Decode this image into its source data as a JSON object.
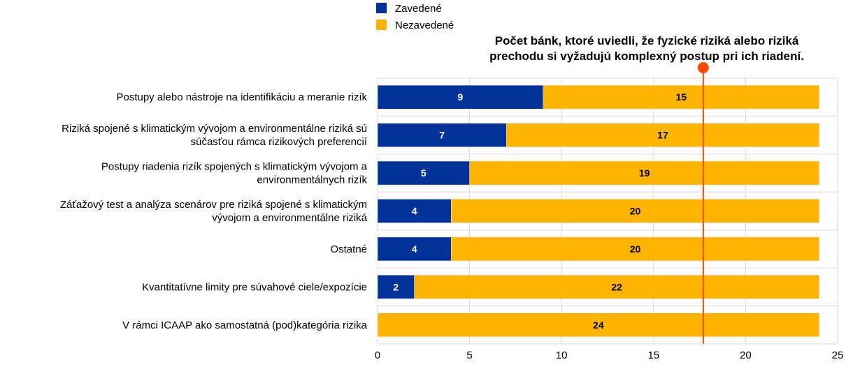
{
  "chart_data": {
    "type": "bar",
    "orientation": "horizontal",
    "stacked": true,
    "title": "",
    "xlabel": "",
    "ylabel": "",
    "xlim": [
      0,
      25
    ],
    "x_ticks": [
      0,
      5,
      10,
      15,
      20,
      25
    ],
    "grid": "vertical",
    "legend_position": "top",
    "categories": [
      "Postupy alebo nástroje na identifikáciu a meranie rizík",
      "Riziká spojené s klimatickým vývojom a environmentálne riziká sú súčasťou rámca rizikových preferencií",
      "Postupy riadenia rizík spojených s klimatickým vývojom a environmentálnych rizík",
      "Záťažový test a analýza scenárov pre riziká spojené s klimatickým vývojom a environmentálne riziká",
      "Ostatné",
      "Kvantitatívne limity pre súvahové ciele/expozície",
      "V rámci ICAAP ako samostatná (pod)kategória rizika"
    ],
    "category_lines": [
      [
        "Postupy alebo nástroje na identifikáciu a meranie rizík"
      ],
      [
        "Riziká spojené s klimatickým vývojom a environmentálne riziká sú",
        "súčasťou rámca rizikových preferencií"
      ],
      [
        "Postupy riadenia rizík spojených s klimatickým vývojom a",
        "environmentálnych rizík"
      ],
      [
        "Záťažový test a analýza scenárov pre riziká spojené s klimatickým",
        "vývojom a environmentálne riziká"
      ],
      [
        "Ostatné"
      ],
      [
        "Kvantitatívne limity pre súvahové ciele/expozície"
      ],
      [
        "V rámci ICAAP ako samostatná (pod)kategória rizika"
      ]
    ],
    "series": [
      {
        "name": "Zavedené",
        "color": "#003299",
        "label_color": "#ffffff",
        "values": [
          9,
          7,
          5,
          4,
          4,
          2,
          0
        ]
      },
      {
        "name": "Nezavedené",
        "color": "#ffb400",
        "label_color": "#000000",
        "values": [
          15,
          17,
          19,
          20,
          20,
          22,
          24
        ]
      }
    ],
    "reference_line": {
      "value": 17.7,
      "color": "#ff4b00",
      "annotation_lines": [
        "Počet bánk, ktoré uviedli, že fyzické riziká alebo riziká",
        "prechodu si vyžadujú komplexný postup pri ich riadení."
      ]
    }
  }
}
